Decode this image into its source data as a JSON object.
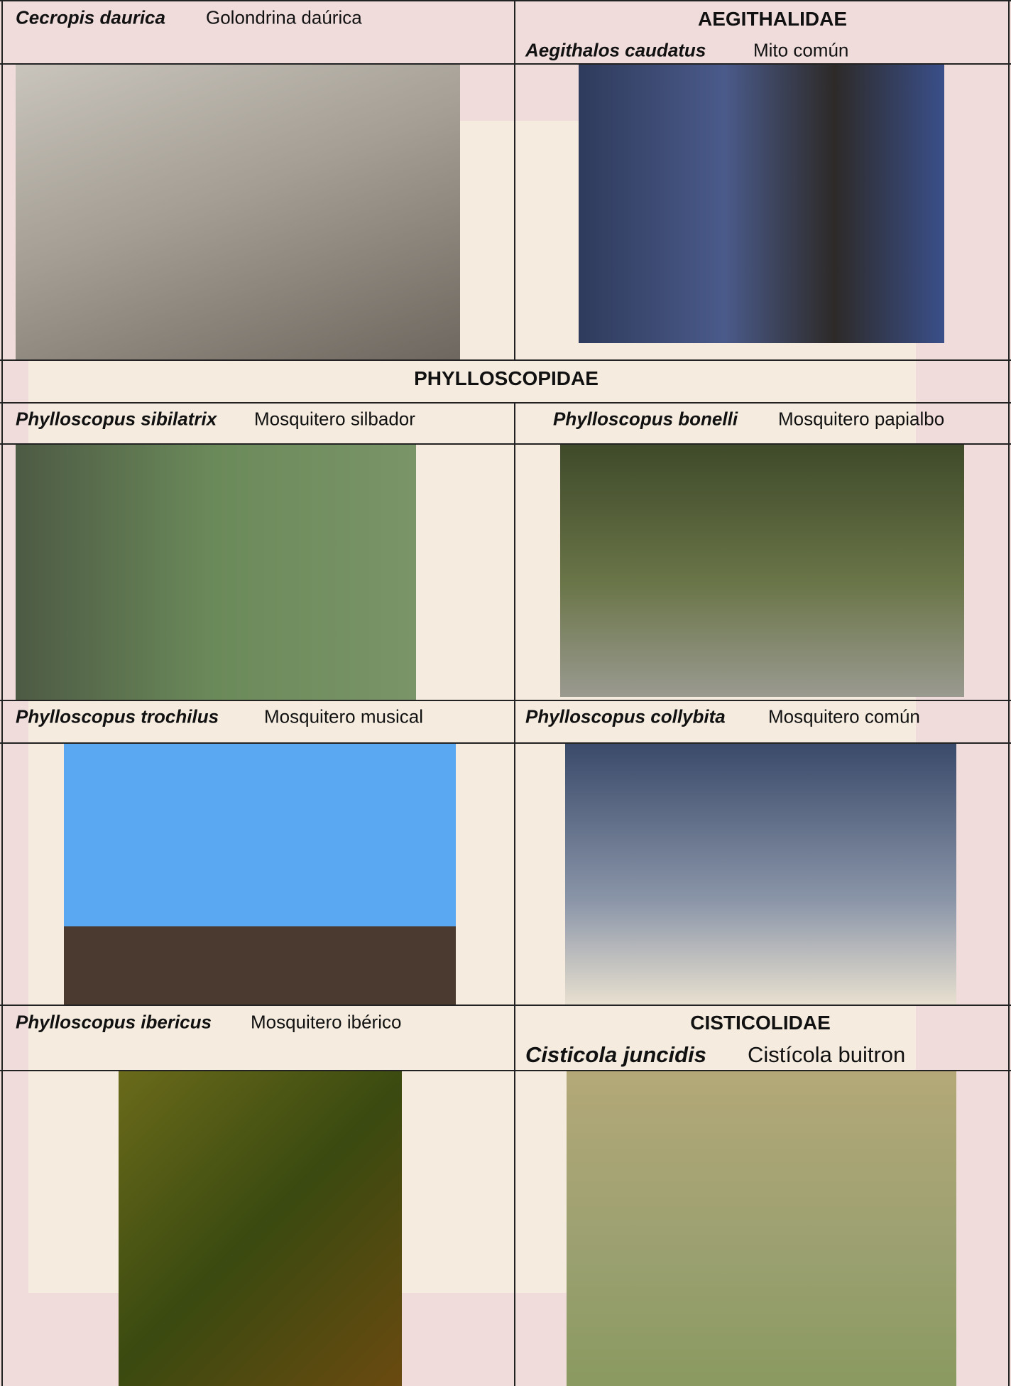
{
  "table": {
    "rows": [
      {
        "left": {
          "scientific": "Cecropis daurica",
          "common": "Golondrina daúrica"
        },
        "right": {
          "family": "AEGITHALIDAE",
          "scientific": "Aegithalos caudatus",
          "common": "Mito común"
        }
      },
      {
        "family": "PHYLLOSCOPIDAE"
      },
      {
        "left": {
          "scientific": "Phylloscopus sibilatrix",
          "common": "Mosquitero silbador"
        },
        "right": {
          "scientific": "Phylloscopus bonelli",
          "common": "Mosquitero papialbo"
        }
      },
      {
        "left": {
          "scientific": "Phylloscopus trochilus",
          "common": "Mosquitero musical"
        },
        "right": {
          "scientific": "Phylloscopus collybita",
          "common": "Mosquitero común"
        }
      },
      {
        "left": {
          "scientific": "Phylloscopus ibericus",
          "common": "Mosquitero ibérico"
        },
        "right": {
          "family": "CISTICOLIDAE",
          "scientific": "Cisticola juncidis",
          "common": "Cistícola buitron"
        }
      }
    ]
  }
}
